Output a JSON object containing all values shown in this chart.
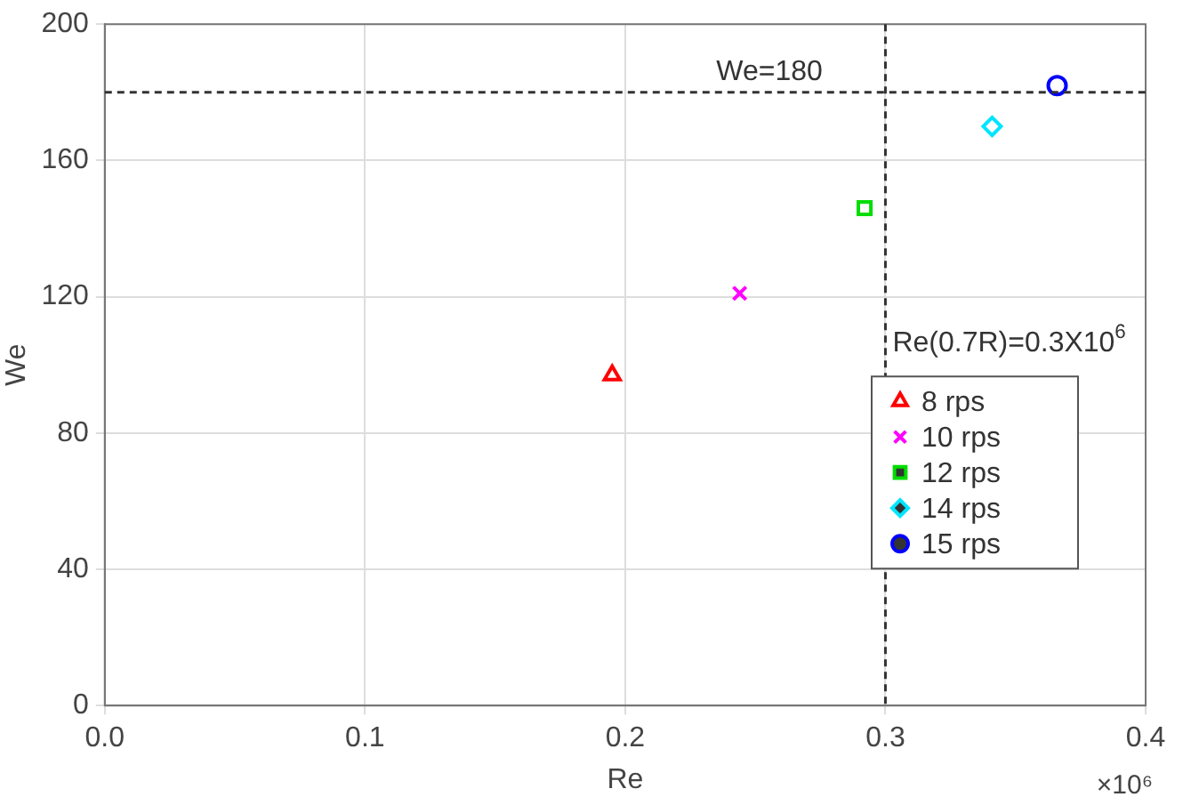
{
  "chart_data": {
    "type": "scatter",
    "xlabel": "Re",
    "ylabel": "We",
    "xlim": [
      0,
      0.4
    ],
    "xticks": [
      {
        "value": 0,
        "label": "0.0"
      },
      0.1,
      0.2,
      0.3,
      0.4
    ],
    "ylim": [
      0,
      200
    ],
    "yticks": [
      0,
      40,
      80,
      120,
      160,
      200
    ],
    "grid": true,
    "legend": "right",
    "series": [
      {
        "name": "8 rps",
        "color": "#ff0000",
        "marker": "triangle",
        "x": [
          0.195
        ],
        "values": [
          97
        ]
      },
      {
        "name": "10 rps",
        "color": "#ff00ff",
        "marker": "cross",
        "x": [
          0.244
        ],
        "values": [
          121
        ]
      },
      {
        "name": "12 rps",
        "color": "#00dd00",
        "marker": "square",
        "x": [
          0.292
        ],
        "values": [
          146
        ]
      },
      {
        "name": "14 rps",
        "color": "#00e5ff",
        "marker": "diamond",
        "x": [
          0.341
        ],
        "values": [
          170
        ]
      },
      {
        "name": "15 rps",
        "color": "#0000ff",
        "marker": "circle",
        "x": [
          0.366
        ],
        "values": [
          182
        ]
      }
    ],
    "ref_lines": [
      {
        "axis": "y",
        "value": 180,
        "label": "We=180",
        "color": "#333333",
        "line_style": "dashed"
      },
      {
        "axis": "x",
        "value": 0.3,
        "label": "Re(0.7R)=0.3X10$^{6}$",
        "color": "#333333",
        "line_style": "dashed"
      }
    ],
    "annotations": [
      "×10⁶"
    ]
  }
}
